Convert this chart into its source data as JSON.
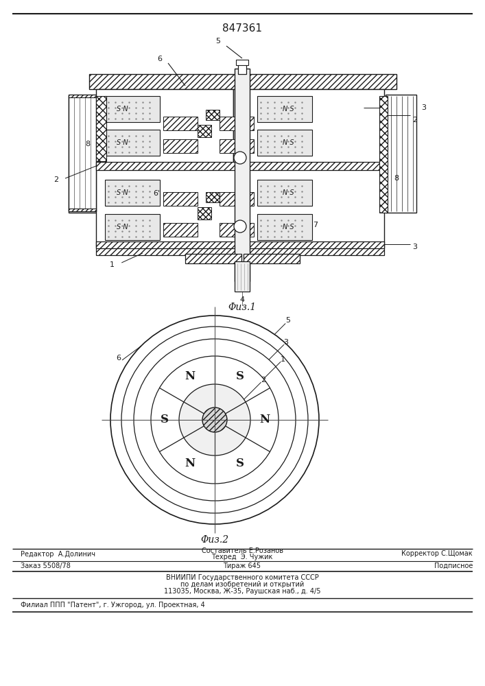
{
  "patent_number": "847361",
  "fig1_caption": "Φuз.1",
  "fig2_caption": "Φuз.2",
  "bg_color": "#ffffff",
  "line_color": "#1a1a1a",
  "footer_row1_left": "Редактор  А.Долинич",
  "footer_row1_center_top": "Составитель Е.Розанов",
  "footer_row1_center_bot": "Техред  Э. Чужик",
  "footer_row1_right": "Корректор С.Щомак",
  "footer_row2_left": "Заказ 5508/78",
  "footer_row2_center": "Тираж 645",
  "footer_row2_right": "Подписное",
  "footer_vniip1": "ВНИИПИ Государственного комитета СССР",
  "footer_vniip2": "по делам изобретений и открытий",
  "footer_vniip3": "113035, Москва, Ж-35, Раушская наб., д. 4/5",
  "footer_filial": "Филиал ППП \"Патент\", г. Ужгород, ул. Проектная, 4"
}
